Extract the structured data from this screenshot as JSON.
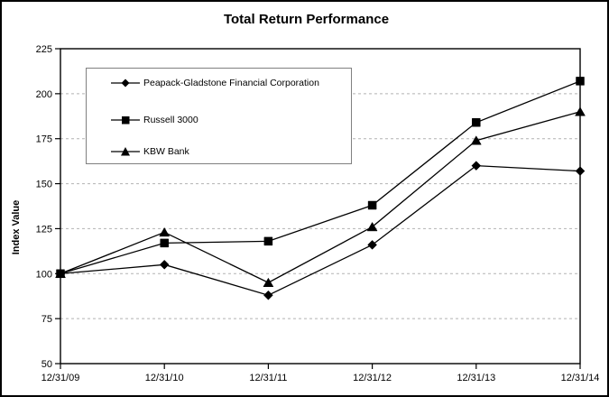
{
  "chart_data": {
    "type": "line",
    "title": "Total Return Performance",
    "xlabel": "",
    "ylabel": "Index Value",
    "categories": [
      "12/31/09",
      "12/31/10",
      "12/31/11",
      "12/31/12",
      "12/31/13",
      "12/31/14"
    ],
    "series": [
      {
        "name": "Peapack-Gladstone Financial Corporation",
        "marker": "diamond",
        "values": [
          100,
          105,
          88,
          116,
          160,
          157
        ]
      },
      {
        "name": "Russell 3000",
        "marker": "square",
        "values": [
          100,
          117,
          118,
          138,
          184,
          207
        ]
      },
      {
        "name": "KBW Bank",
        "marker": "triangle",
        "values": [
          100,
          123,
          95,
          126,
          174,
          190
        ]
      }
    ],
    "ylim": [
      50,
      225
    ],
    "yticks": [
      50,
      75,
      100,
      125,
      150,
      175,
      200,
      225
    ],
    "grid": true,
    "grid_style": "dashed",
    "legend_position": "upper-left-inside",
    "series_color": "#000000",
    "grid_color": "#b2b2b2",
    "legend_border_color": "#808080"
  }
}
